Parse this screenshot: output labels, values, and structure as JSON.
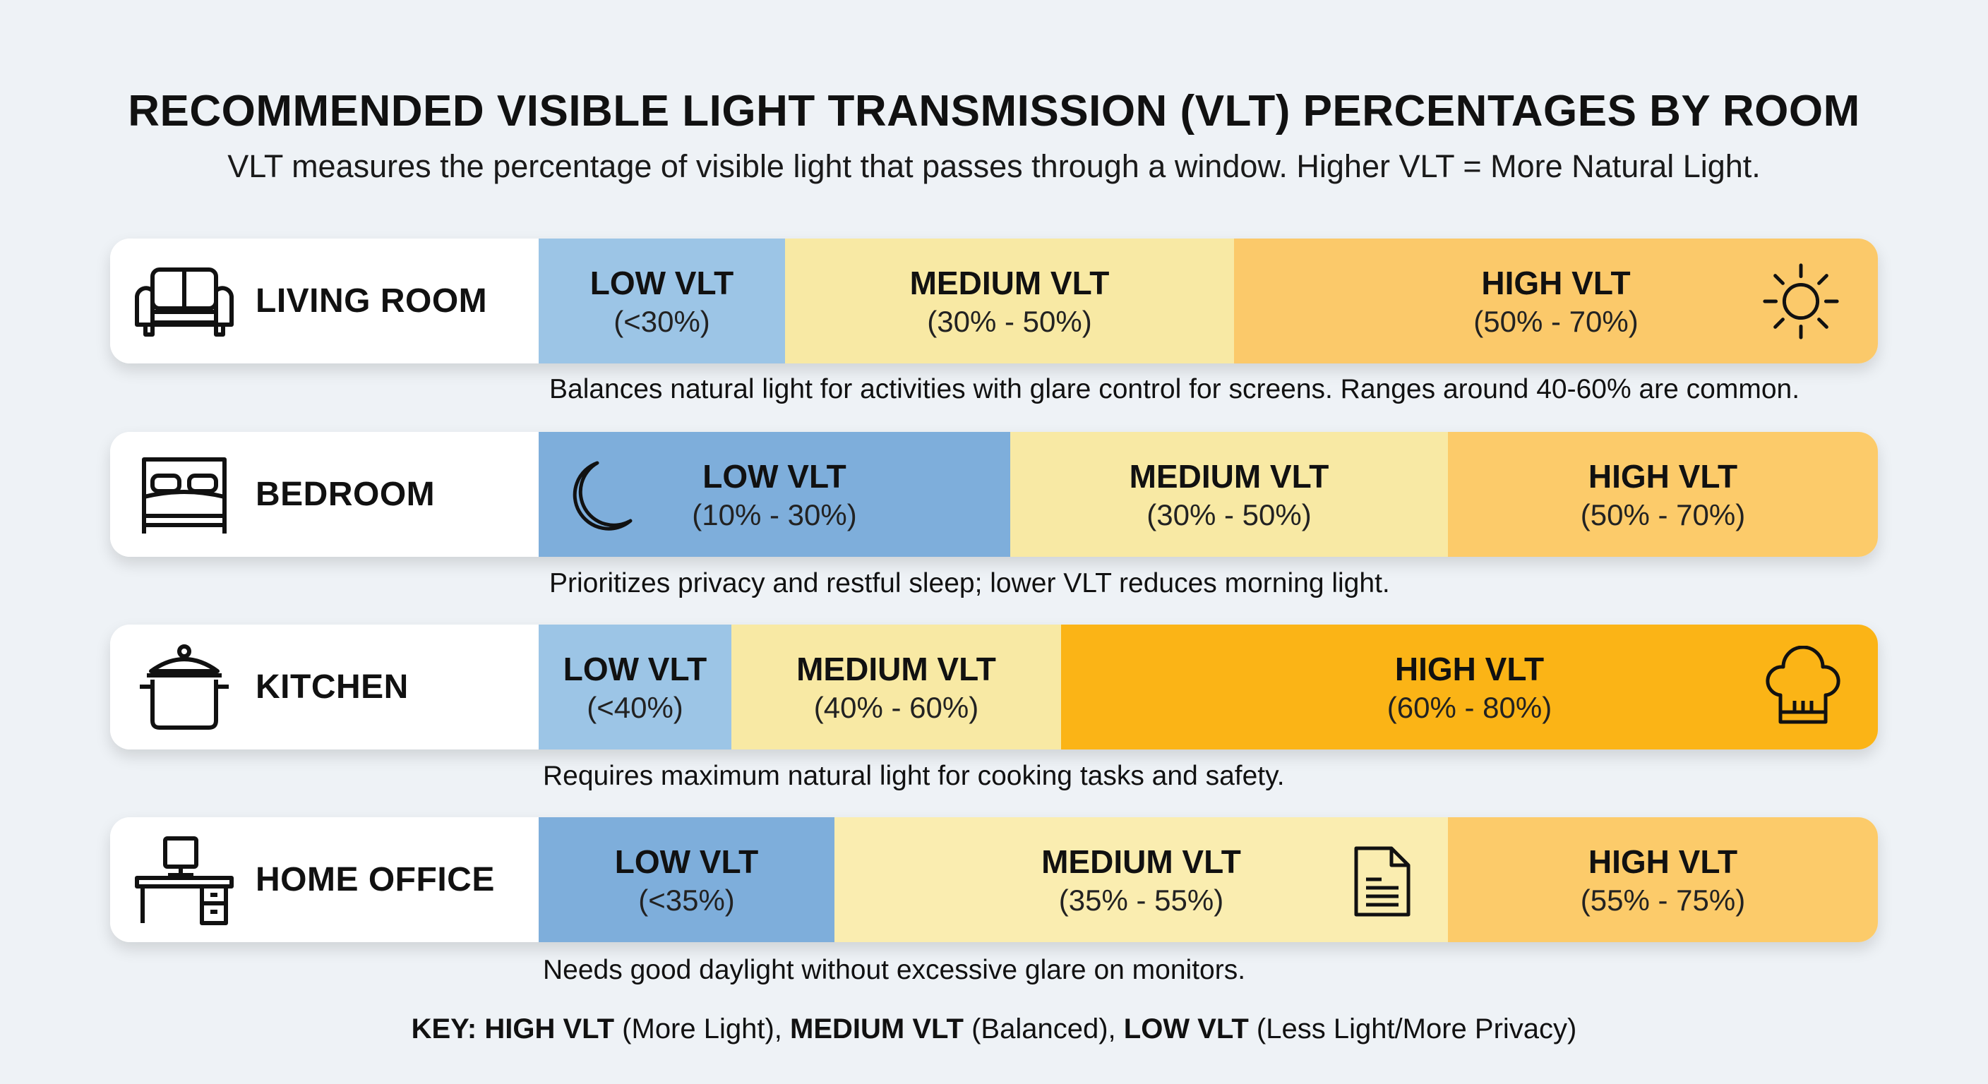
{
  "title": "RECOMMENDED VISIBLE LIGHT TRANSMISSION (VLT) PERCENTAGES BY ROOM",
  "subtitle": "VLT measures the percentage of visible light that passes through a window. Higher VLT = More Natural Light.",
  "colors": {
    "low_light": "#9cc5e6",
    "low_dark": "#7eaedb",
    "medium": "#f8e9a4",
    "high_light": "#fbc96a",
    "high_strong": "#fbb416"
  },
  "rooms": [
    {
      "name": "LIVING ROOM",
      "icon": "sofa-icon",
      "low": {
        "label": "LOW VLT",
        "range": "(<30%)"
      },
      "medium": {
        "label": "MEDIUM VLT",
        "range": "(30% - 50%)"
      },
      "high": {
        "label": "HIGH VLT",
        "range": "(50% - 70%)",
        "icon": "sun-icon"
      },
      "description": "Balances natural light for activities with glare control for screens. Ranges around 40-60% are common."
    },
    {
      "name": "BEDROOM",
      "icon": "bed-icon",
      "low": {
        "label": "LOW VLT",
        "range": "(10% - 30%)",
        "icon": "moon-icon"
      },
      "medium": {
        "label": "MEDIUM VLT",
        "range": "(30% - 50%)"
      },
      "high": {
        "label": "HIGH VLT",
        "range": "(50% - 70%)"
      },
      "description": "Prioritizes privacy and restful sleep; lower VLT reduces morning light."
    },
    {
      "name": "KITCHEN",
      "icon": "pot-icon",
      "low": {
        "label": "LOW VLT",
        "range": "(<40%)"
      },
      "medium": {
        "label": "MEDIUM VLT",
        "range": "(40% - 60%)"
      },
      "high": {
        "label": "HIGH VLT",
        "range": "(60% - 80%)",
        "icon": "chef-hat-icon"
      },
      "description": "Requires maximum natural light for cooking tasks and safety."
    },
    {
      "name": "HOME OFFICE",
      "icon": "desk-icon",
      "low": {
        "label": "LOW VLT",
        "range": "(<35%)"
      },
      "medium": {
        "label": "MEDIUM VLT",
        "range": "(35% - 55%)",
        "icon": "document-icon"
      },
      "high": {
        "label": "HIGH VLT",
        "range": "(55% - 75%)"
      },
      "description": "Needs good daylight without excessive glare on monitors."
    }
  ],
  "key": {
    "prefix": "KEY:",
    "high": "HIGH VLT",
    "high_desc": "(More Light),",
    "medium": "MEDIUM VLT",
    "medium_desc": "(Balanced),",
    "low": "LOW VLT",
    "low_desc": "(Less Light/More Privacy)"
  }
}
